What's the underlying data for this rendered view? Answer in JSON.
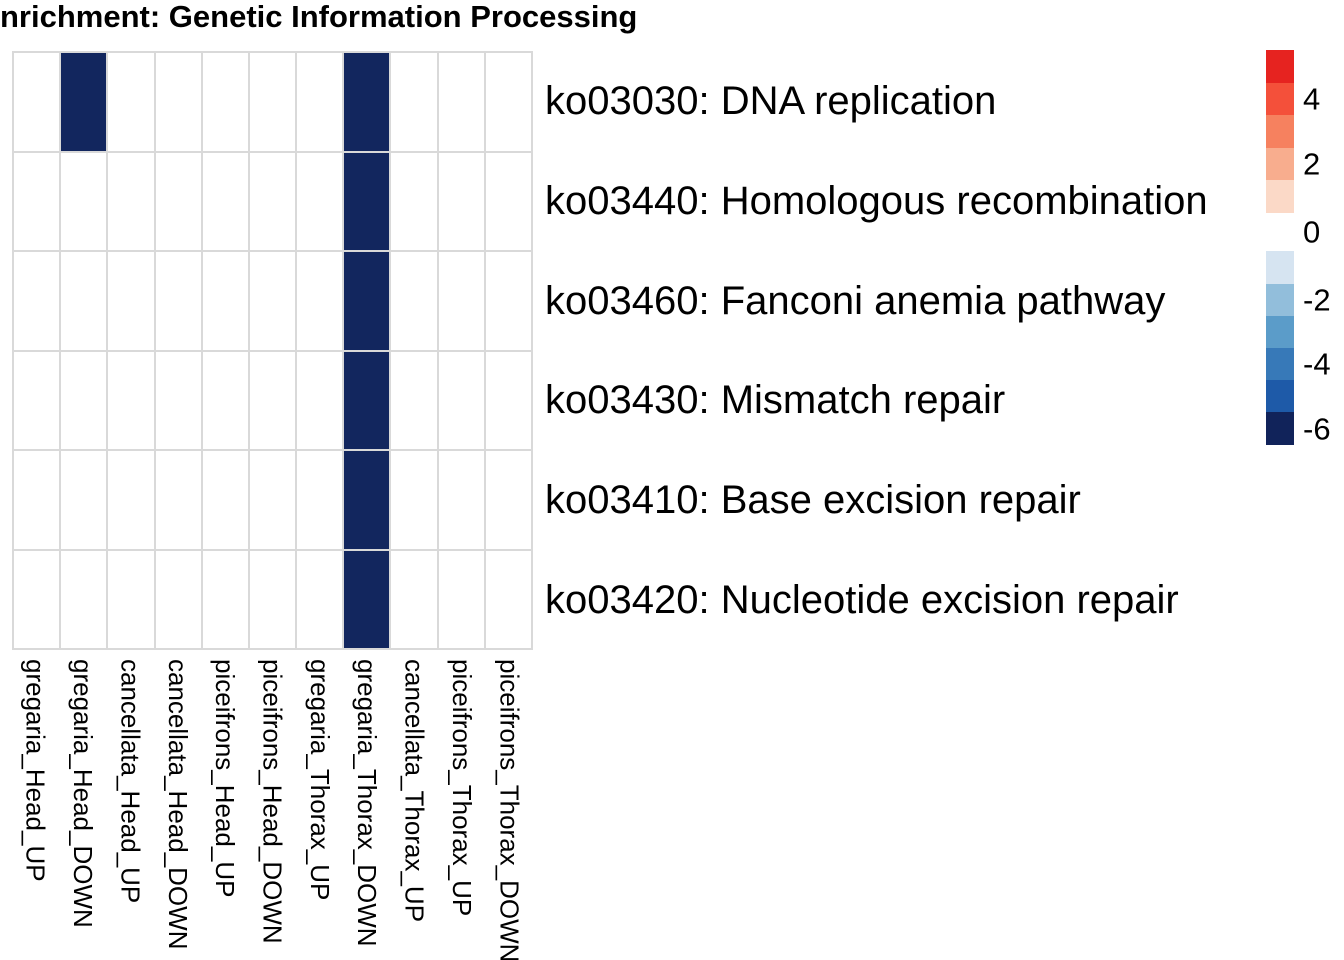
{
  "title": "nrichment: Genetic Information Processing",
  "chart_data": {
    "type": "heatmap",
    "title": "nrichment: Genetic Information Processing",
    "columns": [
      "gregaria_Head_UP",
      "gregaria_Head_DOWN",
      "cancellata_Head_UP",
      "cancellata_Head_DOWN",
      "piceifrons_Head_UP",
      "piceifrons_Head_DOWN",
      "gregaria_Thorax_UP",
      "gregaria_Thorax_DOWN",
      "cancellata_Thorax_UP",
      "piceifrons_Thorax_UP",
      "piceifrons_Thorax_DOWN"
    ],
    "rows": [
      "ko03030: DNA replication",
      "ko03440: Homologous recombination",
      "ko03460: Fanconi anemia pathway",
      "ko03430: Mismatch repair",
      "ko03410: Base excision repair",
      "ko03420: Nucleotide excision repair"
    ],
    "values": [
      [
        null,
        -6,
        null,
        null,
        null,
        null,
        null,
        -6,
        null,
        null,
        null
      ],
      [
        null,
        null,
        null,
        null,
        null,
        null,
        null,
        -6,
        null,
        null,
        null
      ],
      [
        null,
        null,
        null,
        null,
        null,
        null,
        null,
        -6,
        null,
        null,
        null
      ],
      [
        null,
        null,
        null,
        null,
        null,
        null,
        null,
        -6,
        null,
        null,
        null
      ],
      [
        null,
        null,
        null,
        null,
        null,
        null,
        null,
        -6,
        null,
        null,
        null
      ],
      [
        null,
        null,
        null,
        null,
        null,
        null,
        null,
        -6,
        null,
        null,
        null
      ]
    ],
    "colors": {
      "filled_cell": "#12265e",
      "empty_cell": "#ffffff",
      "grid_line": "#d9d9d9"
    },
    "colorbar": {
      "position": "right",
      "tick_labels": [
        "4",
        "2",
        "0",
        "-2",
        "-4",
        "-6"
      ],
      "positive_colors": [
        "#e62320",
        "#f4503a",
        "#f6815f",
        "#f8ad8e",
        "#fbd9c7"
      ],
      "negative_colors": [
        "#d6e4f1",
        "#92bedb",
        "#5b9cc9",
        "#3779b8",
        "#1e5aa8",
        "#11235a"
      ]
    },
    "grid": true,
    "legend_position": "right"
  }
}
